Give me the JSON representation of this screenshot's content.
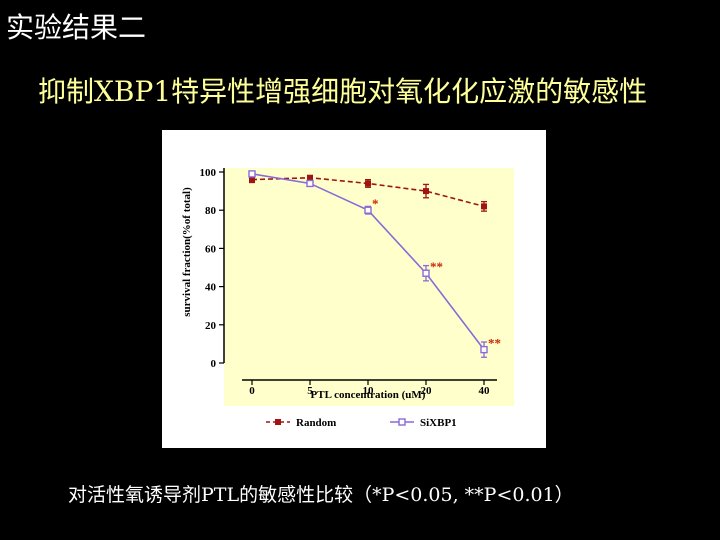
{
  "slide": {
    "title": "实验结果二",
    "subtitle": "抑制XBP1特异性增强细胞对氧化化应激的敏感性",
    "caption": "对活性氧诱导剂PTL的敏感性比较（*P<0.05, **P<0.01）"
  },
  "colors": {
    "background": "#000000",
    "title": "#ffffff",
    "subtitle": "#ffff99",
    "plot_bg": "#ffffcc",
    "random": "#a01414",
    "sixbp1": "#8a6ad6",
    "star": "#cc2200"
  },
  "chart_data": {
    "type": "line",
    "ylabel": "survival fraction(%of total)",
    "xlabel": "PTL concentration (uM)",
    "categories": [
      "0",
      "5",
      "10",
      "20",
      "40"
    ],
    "yticks": [
      0,
      20,
      40,
      60,
      80,
      100
    ],
    "ylim": [
      0,
      100
    ],
    "series": [
      {
        "name": "Random",
        "style": "dashed",
        "marker": "filled-square",
        "values": [
          96,
          97,
          94,
          90,
          82
        ],
        "errors": [
          1.5,
          1,
          2,
          3.5,
          2.5
        ]
      },
      {
        "name": "SiXBP1",
        "style": "solid",
        "marker": "open-square",
        "values": [
          99,
          94,
          80,
          47,
          7
        ],
        "errors": [
          1,
          1.5,
          2,
          4,
          4
        ]
      }
    ],
    "annotations": [
      {
        "category": "10",
        "value": 80,
        "text": "*"
      },
      {
        "category": "20",
        "value": 47,
        "text": "**"
      },
      {
        "category": "40",
        "value": 7,
        "text": "**"
      }
    ],
    "legend_position": "bottom"
  }
}
